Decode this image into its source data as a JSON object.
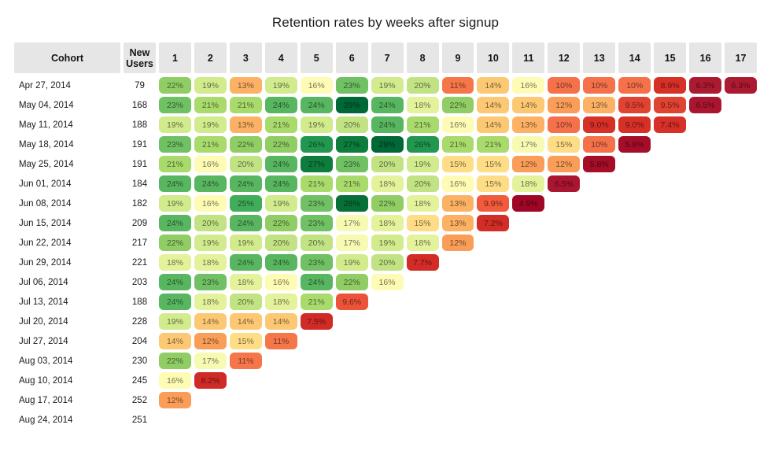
{
  "title": "Retention rates by weeks after signup",
  "table": {
    "cohort_header": "Cohort",
    "new_users_header": "New Users",
    "week_headers": [
      "1",
      "2",
      "3",
      "4",
      "5",
      "6",
      "7",
      "8",
      "9",
      "10",
      "11",
      "12",
      "13",
      "14",
      "15",
      "16",
      "17"
    ]
  },
  "chart_data": {
    "type": "heatmap",
    "title": "Retention rates by weeks after signup",
    "x_label": "weeks after signup",
    "x_ticks": [
      1,
      2,
      3,
      4,
      5,
      6,
      7,
      8,
      9,
      10,
      11,
      12,
      13,
      14,
      15,
      16,
      17
    ],
    "value_unit": "percent",
    "value_range_pct": [
      4.9,
      29
    ],
    "colormap": "red-yellow-green",
    "legend": "none",
    "rows": [
      {
        "cohort": "Apr 27, 2014",
        "new_users": 79,
        "retention_pct": [
          22,
          19,
          13,
          19,
          16,
          23,
          19,
          20,
          11,
          14,
          16,
          10,
          10,
          10,
          8.9,
          6.3,
          6.3
        ]
      },
      {
        "cohort": "May 04, 2014",
        "new_users": 168,
        "retention_pct": [
          23,
          21,
          21,
          24,
          24,
          29,
          24,
          18,
          22,
          14,
          14,
          12,
          13,
          9.5,
          9.5,
          6.5
        ]
      },
      {
        "cohort": "May 11, 2014",
        "new_users": 188,
        "retention_pct": [
          19,
          19,
          13,
          21,
          19,
          20,
          24,
          21,
          16,
          14,
          13,
          10,
          9.0,
          9.0,
          7.4
        ]
      },
      {
        "cohort": "May 18, 2014",
        "new_users": 191,
        "retention_pct": [
          23,
          21,
          22,
          22,
          26,
          27,
          29,
          26,
          21,
          21,
          17,
          15,
          10,
          5.8
        ]
      },
      {
        "cohort": "May 25, 2014",
        "new_users": 191,
        "retention_pct": [
          21,
          16,
          20,
          24,
          27,
          23,
          20,
          19,
          15,
          15,
          12,
          12,
          5.8
        ]
      },
      {
        "cohort": "Jun 01, 2014",
        "new_users": 184,
        "retention_pct": [
          24,
          24,
          24,
          24,
          21,
          21,
          18,
          20,
          16,
          15,
          18,
          6.5
        ]
      },
      {
        "cohort": "Jun 08, 2014",
        "new_users": 182,
        "retention_pct": [
          19,
          16,
          25,
          19,
          23,
          28,
          22,
          18,
          13,
          9.9,
          4.9
        ]
      },
      {
        "cohort": "Jun 15, 2014",
        "new_users": 209,
        "retention_pct": [
          24,
          20,
          24,
          22,
          23,
          17,
          18,
          15,
          13,
          7.2
        ]
      },
      {
        "cohort": "Jun 22, 2014",
        "new_users": 217,
        "retention_pct": [
          22,
          19,
          19,
          20,
          20,
          17,
          19,
          18,
          12
        ]
      },
      {
        "cohort": "Jun 29, 2014",
        "new_users": 221,
        "retention_pct": [
          18,
          18,
          24,
          24,
          23,
          19,
          20,
          7.7
        ]
      },
      {
        "cohort": "Jul 06, 2014",
        "new_users": 203,
        "retention_pct": [
          24,
          23,
          18,
          16,
          24,
          22,
          16
        ]
      },
      {
        "cohort": "Jul 13, 2014",
        "new_users": 188,
        "retention_pct": [
          24,
          18,
          20,
          18,
          21,
          9.6
        ]
      },
      {
        "cohort": "Jul 20, 2014",
        "new_users": 228,
        "retention_pct": [
          19,
          14,
          14,
          14,
          7.5
        ]
      },
      {
        "cohort": "Jul 27, 2014",
        "new_users": 204,
        "retention_pct": [
          14,
          12,
          15,
          11
        ]
      },
      {
        "cohort": "Aug 03, 2014",
        "new_users": 230,
        "retention_pct": [
          22,
          17,
          11
        ]
      },
      {
        "cohort": "Aug 10, 2014",
        "new_users": 245,
        "retention_pct": [
          16,
          8.2
        ]
      },
      {
        "cohort": "Aug 17, 2014",
        "new_users": 252,
        "retention_pct": [
          12
        ]
      },
      {
        "cohort": "Aug 24, 2014",
        "new_users": 251,
        "retention_pct": []
      }
    ]
  },
  "colors": {
    "header_bg": "#e6e6e6",
    "cell_text": "rgba(0,0,0,0.55)",
    "palette": {
      "4.9": "#a00726",
      "5.8": "#a50d28",
      "6.3": "#ac1a31",
      "6.5": "#aa1530",
      "7.2": "#d22d26",
      "7.4": "#d63028",
      "7.5": "#d02b27",
      "7.7": "#d32c26",
      "8.2": "#d02a26",
      "8.9": "#d73027",
      "9.0": "#d73027",
      "9.5": "#e04331",
      "9.6": "#eb5438",
      "9.9": "#f15a3c",
      "10": "#f4714a",
      "11": "#f57649",
      "12": "#fa9d58",
      "13": "#fdb164",
      "14": "#fdc873",
      "15": "#fedd86",
      "16": "#fdfbb4",
      "17": "#f7fab2",
      "18": "#e4f29c",
      "19": "#d2eb8d",
      "20": "#c2e383",
      "21": "#a9da6c",
      "22": "#90cd64",
      "23": "#70c064",
      "24": "#58b660",
      "25": "#41ac59",
      "26": "#219750",
      "27": "#0d7c3d",
      "28": "#077038",
      "29": "#006837"
    }
  }
}
